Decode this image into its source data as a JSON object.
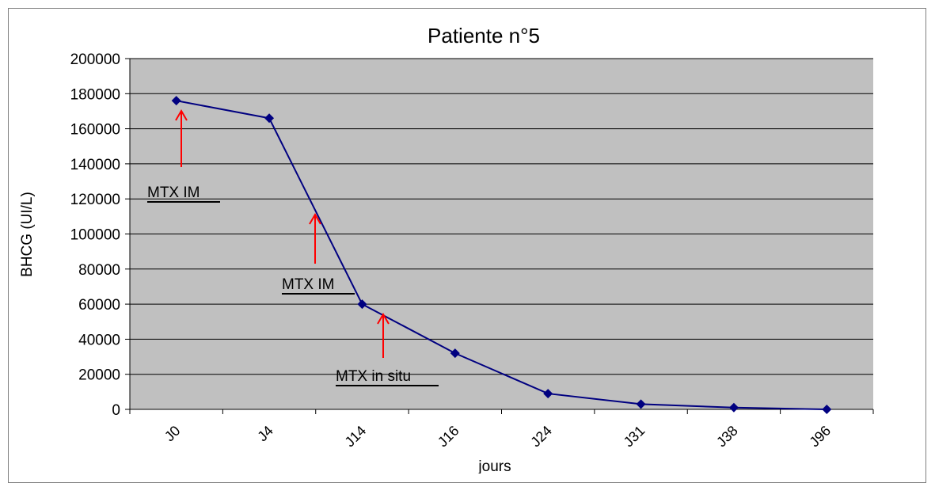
{
  "chart_data": {
    "type": "line",
    "title": "Patiente n°5",
    "xlabel": "jours",
    "ylabel": "BHCG (UI/L)",
    "ylim": [
      0,
      200000
    ],
    "yticks": [
      0,
      20000,
      40000,
      60000,
      80000,
      100000,
      120000,
      140000,
      160000,
      180000,
      200000
    ],
    "categories": [
      "J0",
      "J4",
      "J14",
      "J16",
      "J24",
      "J31",
      "J38",
      "J96"
    ],
    "series": [
      {
        "values": [
          176000,
          166000,
          60000,
          32000,
          9000,
          3000,
          1000,
          0
        ],
        "color": "#000080"
      }
    ],
    "grid": true,
    "plot_background": "#c0c0c0",
    "annotations": [
      {
        "text": "MTX IM",
        "arrow_color": "#ff0000"
      },
      {
        "text": "MTX IM",
        "arrow_color": "#ff0000"
      },
      {
        "text": "MTX in situ",
        "arrow_color": "#ff0000"
      }
    ]
  }
}
